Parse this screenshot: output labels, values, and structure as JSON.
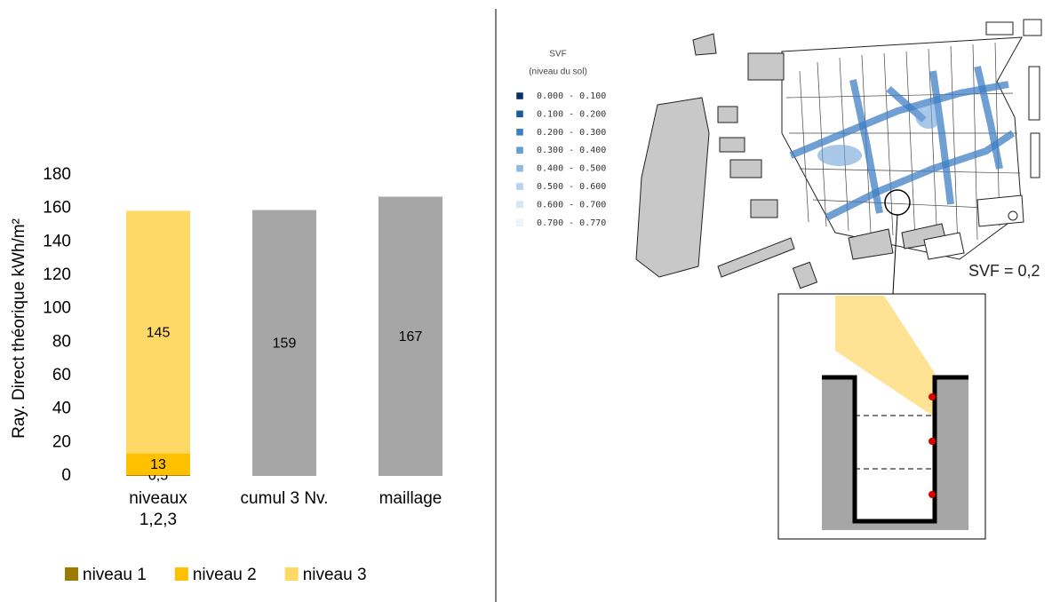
{
  "chart_data": {
    "type": "bar",
    "stacked": true,
    "y_label": "Ray. Direct théorique kWh/m²",
    "categories": [
      "niveaux 1,2,3",
      "cumul 3 Nv.",
      "maillage"
    ],
    "series": [
      {
        "name": "niveau 1",
        "color": "#9c7a00",
        "values": [
          0.5,
          null,
          null
        ],
        "value_labels": [
          "0,5",
          null,
          null
        ]
      },
      {
        "name": "niveau 2",
        "color": "#ffc000",
        "values": [
          13,
          null,
          null
        ]
      },
      {
        "name": "niveau 3",
        "color": "#ffd966",
        "values": [
          145,
          null,
          null
        ]
      },
      {
        "color": "#a6a6a6",
        "values": [
          null,
          159,
          167
        ]
      }
    ],
    "ylim": [
      0,
      180
    ],
    "yticks": [
      0,
      20,
      40,
      60,
      80,
      100,
      120,
      140,
      160,
      180
    ],
    "grid": false,
    "legend": "bottom"
  },
  "map": {
    "legend_title": "SVF",
    "legend_subtitle": "(niveau du sol)",
    "legend_items": [
      {
        "label": "0.000 - 0.100",
        "color": "#08306b"
      },
      {
        "label": "0.100 - 0.200",
        "color": "#1c5a9f"
      },
      {
        "label": "0.200 - 0.300",
        "color": "#3a7fc0"
      },
      {
        "label": "0.300 - 0.400",
        "color": "#5f9fd5"
      },
      {
        "label": "0.400 - 0.500",
        "color": "#8dbbe3"
      },
      {
        "label": "0.500 - 0.600",
        "color": "#b5d2ee"
      },
      {
        "label": "0.600 - 0.700",
        "color": "#d6e6f6"
      },
      {
        "label": "0.700 - 0.770",
        "color": "#eef5fc"
      }
    ],
    "annotation": "SVF = 0,2"
  }
}
